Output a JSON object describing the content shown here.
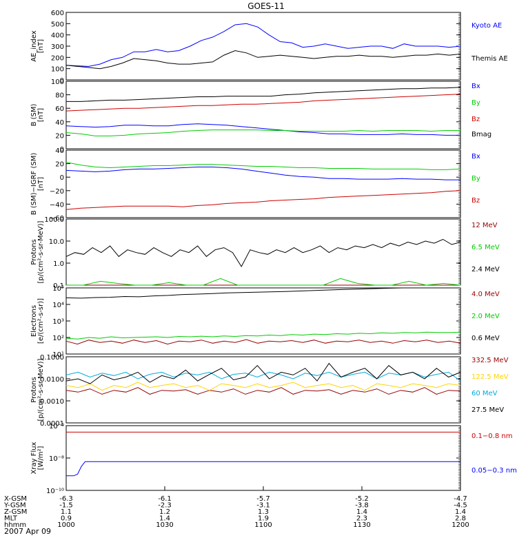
{
  "title": "GOES-11",
  "footer_date": "2007 Apr 09",
  "colors": {
    "black": "#000000",
    "blue": "#0000ff",
    "red": "#cc0000",
    "green": "#00cc00",
    "darkred": "#990000",
    "yellow": "#ffd400",
    "cyan": "#00aadd"
  },
  "chart_data": [
    {
      "type": "line",
      "panel": "ae",
      "ylabel": [
        "AE_index",
        "[nT]"
      ],
      "ylim": [
        0,
        600
      ],
      "yticks": [
        "600",
        "500",
        "400",
        "300",
        "200",
        "100",
        "0"
      ],
      "tick_values": [
        600,
        500,
        400,
        300,
        200,
        100,
        0
      ],
      "scale": "linear",
      "series": [
        {
          "name": "Kyoto AE",
          "color": "#0000ff",
          "values": [
            130,
            125,
            120,
            140,
            180,
            200,
            250,
            250,
            270,
            250,
            260,
            300,
            350,
            380,
            430,
            490,
            500,
            470,
            400,
            340,
            330,
            290,
            300,
            320,
            300,
            280,
            290,
            300,
            300,
            280,
            320,
            300,
            300,
            300,
            290,
            300
          ]
        },
        {
          "name": "Themis AE",
          "color": "#000000",
          "values": [
            130,
            120,
            110,
            100,
            120,
            150,
            190,
            180,
            170,
            150,
            140,
            140,
            150,
            160,
            220,
            260,
            240,
            200,
            210,
            220,
            210,
            200,
            190,
            200,
            210,
            210,
            220,
            210,
            210,
            200,
            210,
            220,
            220,
            230,
            220,
            230
          ]
        }
      ]
    },
    {
      "type": "line",
      "panel": "bsm",
      "ylabel": [
        "B (SM)",
        "[nT]"
      ],
      "ylim": [
        0,
        100
      ],
      "yticks": [
        "100",
        "80",
        "60",
        "40",
        "20",
        "0"
      ],
      "tick_values": [
        100,
        80,
        60,
        40,
        20,
        0
      ],
      "scale": "linear",
      "series": [
        {
          "name": "Bx",
          "color": "#0000ff",
          "values": [
            34,
            33,
            32,
            33,
            35,
            35,
            34,
            34,
            36,
            37,
            36,
            35,
            33,
            31,
            29,
            27,
            25,
            24,
            22,
            22,
            21,
            21,
            21,
            22,
            21,
            21,
            20,
            20
          ]
        },
        {
          "name": "By",
          "color": "#00cc00",
          "values": [
            24,
            22,
            19,
            19,
            20,
            22,
            23,
            24,
            26,
            27,
            28,
            28,
            28,
            28,
            27,
            27,
            26,
            26,
            26,
            26,
            27,
            26,
            27,
            27,
            27,
            26,
            27,
            27
          ]
        },
        {
          "name": "Bz",
          "color": "#cc0000",
          "values": [
            56,
            57,
            58,
            59,
            60,
            60,
            61,
            62,
            63,
            64,
            64,
            65,
            66,
            66,
            67,
            68,
            69,
            71,
            72,
            73,
            74,
            75,
            76,
            77,
            78,
            79,
            80,
            81
          ]
        },
        {
          "name": "Bmag",
          "color": "#000000",
          "values": [
            70,
            70,
            71,
            72,
            72,
            73,
            74,
            75,
            76,
            77,
            77,
            78,
            78,
            78,
            78,
            80,
            81,
            83,
            84,
            85,
            86,
            87,
            88,
            89,
            89,
            90,
            90,
            91
          ]
        }
      ]
    },
    {
      "type": "line",
      "panel": "bigrf",
      "ylabel": [
        "B (SM)−IGRF (SM)",
        "[nT]"
      ],
      "ylim": [
        -60,
        40
      ],
      "yticks": [
        "40",
        "20",
        "0",
        "−20",
        "−40",
        "−60"
      ],
      "tick_values": [
        40,
        20,
        0,
        -20,
        -40,
        -60
      ],
      "scale": "linear",
      "series": [
        {
          "name": "Bx",
          "color": "#0000ff",
          "values": [
            10,
            9,
            8,
            9,
            11,
            12,
            12,
            13,
            14,
            15,
            15,
            14,
            12,
            9,
            6,
            3,
            1,
            0,
            -2,
            -2,
            -3,
            -3,
            -3,
            -2,
            -3,
            -3,
            -4,
            -4
          ]
        },
        {
          "name": "By",
          "color": "#00cc00",
          "values": [
            22,
            18,
            15,
            14,
            15,
            16,
            17,
            17,
            18,
            19,
            19,
            18,
            17,
            16,
            16,
            15,
            14,
            14,
            13,
            13,
            13,
            12,
            12,
            12,
            12,
            11,
            11,
            12
          ]
        },
        {
          "name": "Bz",
          "color": "#cc0000",
          "values": [
            -48,
            -46,
            -45,
            -44,
            -43,
            -43,
            -43,
            -43,
            -44,
            -42,
            -41,
            -39,
            -38,
            -37,
            -35,
            -34,
            -33,
            -32,
            -30,
            -29,
            -28,
            -27,
            -26,
            -25,
            -24,
            -23,
            -21,
            -20
          ]
        }
      ]
    },
    {
      "type": "line",
      "panel": "protons1",
      "ylabel": [
        "Protons",
        "[p/(cm²-s-sr-MeV)]"
      ],
      "ylim": [
        0.1,
        100
      ],
      "yticks": [
        "100.0",
        "10.0",
        "1.0",
        "0.1"
      ],
      "tick_values": [
        100,
        10,
        1,
        0.1
      ],
      "scale": "log",
      "series": [
        {
          "name": "12 MeV",
          "color": "#990000",
          "values": [
            0.1,
            0.1,
            0.1,
            0.1,
            0.1,
            0.1,
            0.1,
            0.1,
            0.1,
            0.1,
            0.1,
            0.1,
            0.1,
            0.1,
            0.1,
            0.1,
            0.1,
            0.1,
            0.1,
            0.1,
            0.1,
            0.1,
            0.1,
            0.1
          ]
        },
        {
          "name": "6.5 MeV",
          "color": "#00cc00",
          "values": [
            0.1,
            0.1,
            0.15,
            0.12,
            0.1,
            0.1,
            0.13,
            0.1,
            0.1,
            0.2,
            0.1,
            0.1,
            0.1,
            0.1,
            0.1,
            0.1,
            0.2,
            0.12,
            0.1,
            0.1,
            0.15,
            0.1,
            0.12,
            0.1
          ]
        },
        {
          "name": "2.4 MeV",
          "color": "#000000",
          "values": [
            2,
            3,
            2.5,
            5,
            3,
            6,
            2,
            4,
            3,
            2.5,
            5,
            3,
            2,
            4,
            3,
            6,
            2,
            4,
            5,
            3,
            0.7,
            4,
            3,
            2.5,
            4,
            3,
            5,
            3,
            4,
            6,
            3,
            5,
            4,
            6,
            5,
            7,
            5,
            8,
            6,
            9,
            7,
            10,
            8,
            12,
            7,
            9
          ]
        }
      ]
    },
    {
      "type": "line",
      "panel": "electrons",
      "ylabel": [
        "Electrons",
        "[e/(cm²-s-sr)]"
      ],
      "ylim": [
        10,
        100000
      ],
      "yticks": [
        "10⁵",
        "10⁴",
        "10³",
        "10²",
        "10¹"
      ],
      "tick_values": [
        100000,
        10000,
        1000,
        100,
        10
      ],
      "scale": "log",
      "series": [
        {
          "name": "4.0 MeV",
          "color": "#990000",
          "values": [
            60,
            40,
            70,
            50,
            60,
            45,
            70,
            50,
            65,
            40,
            60,
            55,
            70,
            45,
            60,
            50,
            75,
            45,
            60,
            55,
            65,
            50,
            70,
            45,
            60,
            55,
            70,
            50,
            60,
            45,
            65,
            55,
            70,
            50,
            60,
            45
          ]
        },
        {
          "name": "2.0 MeV",
          "color": "#00cc00",
          "values": [
            90,
            80,
            100,
            90,
            110,
            95,
            100,
            105,
            110,
            100,
            115,
            110,
            120,
            110,
            125,
            115,
            130,
            125,
            140,
            130,
            150,
            140,
            160,
            150,
            170,
            160,
            180,
            170,
            190,
            180,
            200,
            190,
            210,
            200,
            200,
            210
          ]
        },
        {
          "name": "0.6 MeV",
          "color": "#000000",
          "values": [
            25000,
            24000,
            26000,
            27000,
            30000,
            29000,
            33000,
            35000,
            40000,
            42000,
            45000,
            50000,
            52000,
            55000,
            58000,
            60000,
            65000,
            70000,
            75000,
            80000,
            85000,
            90000,
            95000,
            100000,
            100000,
            100000,
            100000,
            100000
          ]
        }
      ]
    },
    {
      "type": "line",
      "panel": "protons2",
      "ylabel": [
        "Protons",
        "[p/(cm²-s-sr-MeV)]"
      ],
      "ylim": [
        0.0001,
        0.1
      ],
      "yticks": [
        "0.1000",
        "0.0100",
        "0.0010",
        "0.0001"
      ],
      "tick_values": [
        0.1,
        0.01,
        0.001,
        0.0001
      ],
      "scale": "log",
      "series": [
        {
          "name": "332.5 MeV",
          "color": "#990000",
          "values": [
            0.003,
            0.0025,
            0.0035,
            0.002,
            0.003,
            0.0025,
            0.004,
            0.002,
            0.003,
            0.0028,
            0.0032,
            0.002,
            0.003,
            0.0025,
            0.0035,
            0.002,
            0.003,
            0.0025,
            0.004,
            0.002,
            0.003,
            0.0028,
            0.0032,
            0.002,
            0.003,
            0.0025,
            0.0035,
            0.002,
            0.003,
            0.0025,
            0.004,
            0.002,
            0.003,
            0.0028
          ]
        },
        {
          "name": "122.5 MeV",
          "color": "#ffd400",
          "values": [
            0.005,
            0.004,
            0.006,
            0.003,
            0.005,
            0.004,
            0.007,
            0.004,
            0.005,
            0.006,
            0.004,
            0.005,
            0.003,
            0.006,
            0.005,
            0.004,
            0.006,
            0.004,
            0.005,
            0.007,
            0.004,
            0.005,
            0.006,
            0.004,
            0.005,
            0.003,
            0.006,
            0.005,
            0.004,
            0.006,
            0.005,
            0.004,
            0.006,
            0.005
          ]
        },
        {
          "name": "60 MeV",
          "color": "#00aadd",
          "values": [
            0.015,
            0.02,
            0.012,
            0.018,
            0.014,
            0.02,
            0.01,
            0.016,
            0.02,
            0.012,
            0.018,
            0.015,
            0.02,
            0.01,
            0.016,
            0.018,
            0.012,
            0.02,
            0.015,
            0.01,
            0.018,
            0.014,
            0.02,
            0.012,
            0.016,
            0.02,
            0.01,
            0.018,
            0.015,
            0.02,
            0.012,
            0.016,
            0.02,
            0.008
          ]
        },
        {
          "name": "27.5 MeV",
          "color": "#000000",
          "values": [
            0.008,
            0.01,
            0.006,
            0.015,
            0.009,
            0.012,
            0.02,
            0.007,
            0.014,
            0.01,
            0.025,
            0.008,
            0.016,
            0.03,
            0.009,
            0.012,
            0.04,
            0.01,
            0.02,
            0.015,
            0.03,
            0.008,
            0.05,
            0.012,
            0.02,
            0.03,
            0.01,
            0.04,
            0.015,
            0.02,
            0.01,
            0.03,
            0.012,
            0.02
          ]
        }
      ]
    },
    {
      "type": "line",
      "panel": "xray",
      "ylabel": [
        "Xray Flux",
        "[W/m²]"
      ],
      "ylim": [
        1e-10,
        1e-06
      ],
      "yticks": [
        "10⁻⁶",
        "10⁻⁸",
        "10⁻¹⁰"
      ],
      "tick_values": [
        1e-06,
        1e-08,
        1e-10
      ],
      "scale": "log",
      "series": [
        {
          "name": "0.1−0.8 nm",
          "color": "#cc0000",
          "values": [
            4e-07,
            4e-07,
            4e-07,
            4e-07,
            4e-07,
            4e-07,
            4e-07,
            4e-07,
            4e-07,
            4e-07,
            4e-07,
            4e-07,
            4e-07,
            4e-07,
            4e-07,
            4e-07,
            4e-07,
            4e-07,
            4e-07,
            4e-07
          ]
        },
        {
          "name": "0.05−0.3 nm",
          "color": "#0000ff",
          "values": [
            8e-10,
            8e-10,
            8e-10,
            1e-09,
            3e-09,
            6e-09,
            6e-09,
            6e-09,
            6e-09,
            6e-09,
            6e-09,
            6e-09,
            6e-09,
            6e-09,
            6e-09,
            6e-09,
            6e-09,
            6e-09,
            6e-09,
            6e-09,
            6e-09,
            6e-09,
            6e-09,
            6e-09,
            6e-09,
            6e-09,
            6e-09,
            6e-09,
            6e-09,
            6e-09,
            6e-09,
            6e-09,
            6e-09,
            6e-09,
            6e-09,
            6e-09,
            6e-09,
            6e-09,
            6e-09,
            6e-09,
            6e-09,
            6e-09,
            6e-09,
            6e-09,
            6e-09,
            6e-09,
            6e-09,
            6e-09,
            6e-09,
            6e-09,
            6e-09,
            6e-09,
            6e-09,
            6e-09,
            6e-09,
            6e-09,
            6e-09,
            6e-09,
            6e-09,
            6e-09,
            6e-09,
            6e-09,
            6e-09,
            6e-09,
            6e-09,
            6e-09,
            6e-09,
            6e-09,
            6e-09,
            6e-09,
            6e-09,
            6e-09,
            6e-09,
            6e-09,
            6e-09,
            6e-09,
            6e-09,
            6e-09,
            6e-09,
            6e-09,
            6e-09,
            6e-09,
            6e-09,
            6e-09,
            6e-09,
            6e-09,
            6e-09,
            6e-09,
            6e-09,
            6e-09,
            6e-09,
            6e-09,
            6e-09,
            6e-09,
            6e-09,
            6e-09,
            6e-09,
            6e-09,
            6e-09,
            6e-09,
            6e-09,
            6e-09,
            6e-09,
            6e-09,
            6e-09
          ]
        }
      ]
    }
  ],
  "x_axis": {
    "rows": [
      {
        "label": "X-GSM",
        "values": [
          "-6.3",
          "-6.1",
          "-5.7",
          "-5.2",
          "-4.7"
        ]
      },
      {
        "label": "Y-GSM",
        "values": [
          "-1.5",
          "-2.3",
          "-3.1",
          "-3.8",
          "-4.5"
        ]
      },
      {
        "label": "Z-GSM",
        "values": [
          "1.1",
          "1.2",
          "1.3",
          "1.4",
          "1.4"
        ]
      },
      {
        "label": "MLT",
        "values": [
          "0.9",
          "1.4",
          "1.9",
          "2.3",
          "2.8"
        ]
      },
      {
        "label": "hhmm",
        "values": [
          "1000",
          "1030",
          "1100",
          "1130",
          "1200"
        ]
      }
    ]
  }
}
